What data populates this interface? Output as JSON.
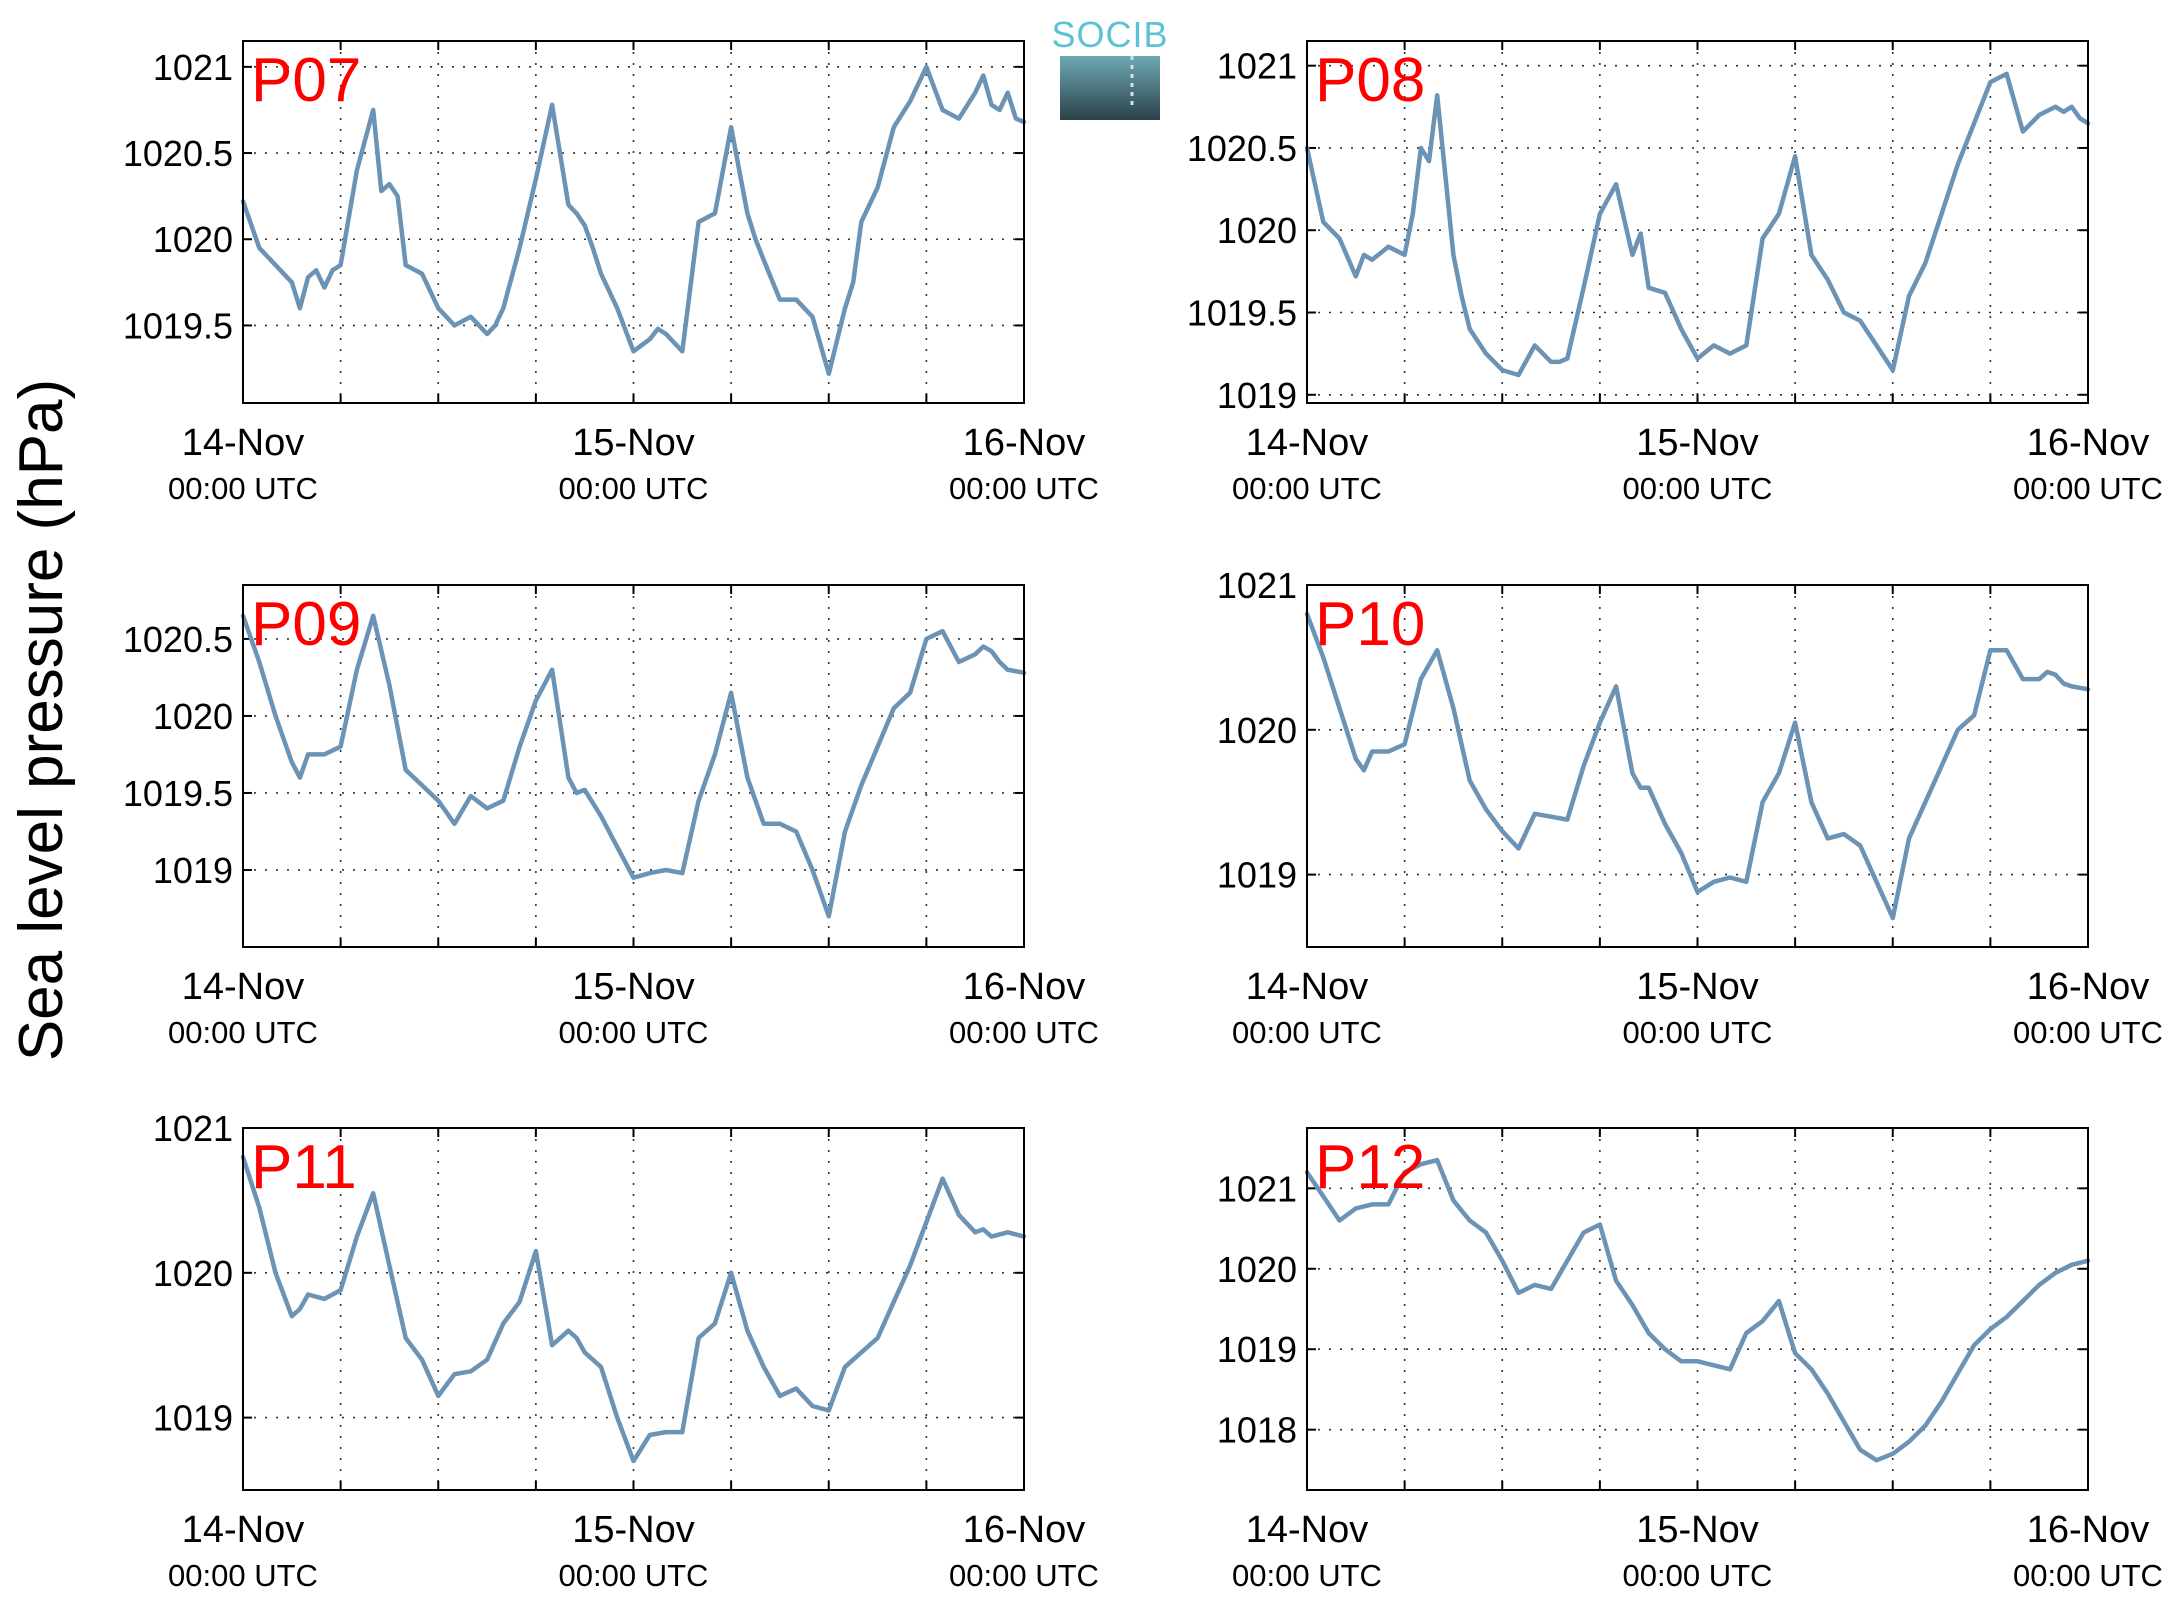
{
  "figure": {
    "ylabel": "Sea level pressure (hPa)",
    "logo_text": "SOCIB",
    "x_tick_labels": [
      {
        "main": "14-Nov",
        "sub": "00:00 UTC"
      },
      {
        "main": "15-Nov",
        "sub": "00:00 UTC"
      },
      {
        "main": "16-Nov",
        "sub": "00:00 UTC"
      }
    ],
    "line_color": "#6b93b5",
    "station_label_color": "#ff0000",
    "logo_color": "#5bc1d3"
  },
  "chart_data": [
    {
      "type": "line",
      "title": "P07",
      "x_unit": "hours since 14-Nov 00:00 UTC",
      "xlim": [
        0,
        48
      ],
      "ylim": [
        1019.05,
        1021.15
      ],
      "yticks": [
        1019.5,
        1020,
        1020.5,
        1021
      ],
      "ytick_labels": [
        "1019.5",
        "1020",
        "1020.5",
        "1021"
      ],
      "grid": true,
      "x": [
        0,
        1,
        2,
        3,
        3.5,
        4,
        4.5,
        5,
        5.5,
        6,
        7,
        8,
        8.5,
        9,
        9.5,
        10,
        11,
        12,
        13,
        14,
        15,
        15.5,
        16,
        17,
        18,
        19,
        20,
        20.5,
        21,
        21.5,
        22,
        23,
        24,
        25,
        25.5,
        26,
        27,
        28,
        29,
        30,
        31,
        31.5,
        32,
        33,
        34,
        35,
        36,
        37,
        37.5,
        38,
        39,
        40,
        41,
        42,
        43,
        44,
        45,
        45.5,
        46,
        46.5,
        47,
        47.5,
        48
      ],
      "y": [
        1020.22,
        1019.95,
        1019.85,
        1019.75,
        1019.6,
        1019.78,
        1019.82,
        1019.72,
        1019.82,
        1019.85,
        1020.4,
        1020.75,
        1020.28,
        1020.32,
        1020.25,
        1019.85,
        1019.8,
        1019.6,
        1019.5,
        1019.55,
        1019.45,
        1019.5,
        1019.6,
        1019.95,
        1020.35,
        1020.78,
        1020.2,
        1020.15,
        1020.08,
        1019.95,
        1019.8,
        1019.6,
        1019.35,
        1019.42,
        1019.48,
        1019.45,
        1019.35,
        1020.1,
        1020.15,
        1020.65,
        1020.15,
        1020.0,
        1019.88,
        1019.65,
        1019.65,
        1019.55,
        1019.22,
        1019.6,
        1019.75,
        1020.1,
        1020.3,
        1020.65,
        1020.8,
        1021.0,
        1020.75,
        1020.7,
        1020.85,
        1020.95,
        1020.78,
        1020.75,
        1020.85,
        1020.7,
        1020.68
      ]
    },
    {
      "type": "line",
      "title": "P08",
      "x_unit": "hours since 14-Nov 00:00 UTC",
      "xlim": [
        0,
        48
      ],
      "ylim": [
        1018.95,
        1021.15
      ],
      "yticks": [
        1019,
        1019.5,
        1020,
        1020.5,
        1021
      ],
      "ytick_labels": [
        "1019",
        "1019.5",
        "1020",
        "1020.5",
        "1021"
      ],
      "grid": true,
      "x": [
        0,
        1,
        2,
        3,
        3.5,
        4,
        5,
        6,
        6.5,
        7,
        7.5,
        8,
        9,
        9.5,
        10,
        11,
        12,
        13,
        14,
        15,
        15.5,
        16,
        17,
        18,
        19,
        20,
        20.5,
        21,
        22,
        23,
        24,
        25,
        26,
        27,
        28,
        29,
        30,
        31,
        32,
        33,
        34,
        35,
        36,
        37,
        38,
        39,
        40,
        41,
        42,
        43,
        44,
        45,
        46,
        46.5,
        47,
        47.5,
        48
      ],
      "y": [
        1020.5,
        1020.05,
        1019.95,
        1019.72,
        1019.85,
        1019.82,
        1019.9,
        1019.85,
        1020.1,
        1020.5,
        1020.42,
        1020.82,
        1019.85,
        1019.6,
        1019.4,
        1019.25,
        1019.15,
        1019.12,
        1019.3,
        1019.2,
        1019.2,
        1019.22,
        1019.65,
        1020.1,
        1020.28,
        1019.85,
        1019.98,
        1019.65,
        1019.62,
        1019.4,
        1019.22,
        1019.3,
        1019.25,
        1019.3,
        1019.95,
        1020.1,
        1020.45,
        1019.85,
        1019.7,
        1019.5,
        1019.45,
        1019.3,
        1019.15,
        1019.6,
        1019.8,
        1020.1,
        1020.4,
        1020.65,
        1020.9,
        1020.95,
        1020.6,
        1020.7,
        1020.75,
        1020.72,
        1020.75,
        1020.68,
        1020.65
      ]
    },
    {
      "type": "line",
      "title": "P09",
      "x_unit": "hours since 14-Nov 00:00 UTC",
      "xlim": [
        0,
        48
      ],
      "ylim": [
        1018.5,
        1020.85
      ],
      "yticks": [
        1019,
        1019.5,
        1020,
        1020.5
      ],
      "ytick_labels": [
        "1019",
        "1019.5",
        "1020",
        "1020.5"
      ],
      "grid": true,
      "x": [
        0,
        1,
        2,
        3,
        3.5,
        4,
        5,
        6,
        7,
        8,
        9,
        10,
        11,
        12,
        13,
        14,
        15,
        16,
        17,
        18,
        19,
        20,
        20.5,
        21,
        22,
        23,
        24,
        25,
        26,
        27,
        28,
        29,
        30,
        31,
        32,
        33,
        34,
        35,
        36,
        37,
        38,
        39,
        40,
        41,
        42,
        43,
        44,
        45,
        45.5,
        46,
        46.5,
        47,
        48
      ],
      "y": [
        1020.65,
        1020.35,
        1020.0,
        1019.7,
        1019.6,
        1019.75,
        1019.75,
        1019.8,
        1020.3,
        1020.65,
        1020.2,
        1019.65,
        1019.55,
        1019.45,
        1019.3,
        1019.48,
        1019.4,
        1019.45,
        1019.8,
        1020.1,
        1020.3,
        1019.6,
        1019.5,
        1019.52,
        1019.35,
        1019.15,
        1018.95,
        1018.98,
        1019.0,
        1018.98,
        1019.45,
        1019.75,
        1020.15,
        1019.6,
        1019.3,
        1019.3,
        1019.25,
        1019.0,
        1018.7,
        1019.25,
        1019.55,
        1019.8,
        1020.05,
        1020.15,
        1020.5,
        1020.55,
        1020.35,
        1020.4,
        1020.45,
        1020.42,
        1020.35,
        1020.3,
        1020.28
      ]
    },
    {
      "type": "line",
      "title": "P10",
      "x_unit": "hours since 14-Nov 00:00 UTC",
      "xlim": [
        0,
        48
      ],
      "ylim": [
        1018.5,
        1021.0
      ],
      "yticks": [
        1019,
        1020,
        1021
      ],
      "ytick_labels": [
        "1019",
        "1020",
        "1021"
      ],
      "grid": true,
      "x": [
        0,
        1,
        2,
        3,
        3.5,
        4,
        5,
        6,
        7,
        8,
        9,
        10,
        11,
        12,
        13,
        14,
        15,
        16,
        17,
        18,
        19,
        20,
        20.5,
        21,
        22,
        23,
        24,
        25,
        26,
        27,
        28,
        29,
        30,
        31,
        32,
        33,
        34,
        35,
        36,
        37,
        38,
        39,
        40,
        41,
        42,
        43,
        44,
        45,
        45.5,
        46,
        46.5,
        47,
        48
      ],
      "y": [
        1020.8,
        1020.5,
        1020.15,
        1019.8,
        1019.72,
        1019.85,
        1019.85,
        1019.9,
        1020.35,
        1020.55,
        1020.15,
        1019.65,
        1019.45,
        1019.3,
        1019.18,
        1019.42,
        1019.4,
        1019.38,
        1019.75,
        1020.05,
        1020.3,
        1019.7,
        1019.6,
        1019.6,
        1019.35,
        1019.15,
        1018.88,
        1018.95,
        1018.98,
        1018.95,
        1019.5,
        1019.7,
        1020.05,
        1019.5,
        1019.25,
        1019.28,
        1019.2,
        1018.95,
        1018.7,
        1019.25,
        1019.5,
        1019.75,
        1020.0,
        1020.1,
        1020.55,
        1020.55,
        1020.35,
        1020.35,
        1020.4,
        1020.38,
        1020.32,
        1020.3,
        1020.28
      ]
    },
    {
      "type": "line",
      "title": "P11",
      "x_unit": "hours since 14-Nov 00:00 UTC",
      "xlim": [
        0,
        48
      ],
      "ylim": [
        1018.5,
        1021.0
      ],
      "yticks": [
        1019,
        1020,
        1021
      ],
      "ytick_labels": [
        "1019",
        "1020",
        "1021"
      ],
      "grid": true,
      "x": [
        0,
        1,
        2,
        3,
        3.5,
        4,
        5,
        6,
        7,
        8,
        9,
        10,
        11,
        12,
        13,
        14,
        15,
        16,
        17,
        18,
        19,
        20,
        20.5,
        21,
        22,
        23,
        24,
        25,
        26,
        27,
        28,
        29,
        30,
        31,
        32,
        33,
        34,
        35,
        36,
        37,
        38,
        39,
        40,
        41,
        42,
        43,
        44,
        45,
        45.5,
        46,
        47,
        48
      ],
      "y": [
        1020.8,
        1020.45,
        1020.0,
        1019.7,
        1019.75,
        1019.85,
        1019.82,
        1019.88,
        1020.25,
        1020.55,
        1020.05,
        1019.55,
        1019.4,
        1019.15,
        1019.3,
        1019.32,
        1019.4,
        1019.65,
        1019.8,
        1020.15,
        1019.5,
        1019.6,
        1019.55,
        1019.45,
        1019.35,
        1019.0,
        1018.7,
        1018.88,
        1018.9,
        1018.9,
        1019.55,
        1019.65,
        1020.0,
        1019.6,
        1019.35,
        1019.15,
        1019.2,
        1019.08,
        1019.05,
        1019.35,
        1019.45,
        1019.55,
        1019.8,
        1020.05,
        1020.35,
        1020.65,
        1020.4,
        1020.28,
        1020.3,
        1020.25,
        1020.28,
        1020.25
      ]
    },
    {
      "type": "line",
      "title": "P12",
      "x_unit": "hours since 14-Nov 00:00 UTC",
      "xlim": [
        0,
        48
      ],
      "ylim": [
        1017.25,
        1021.75
      ],
      "yticks": [
        1018,
        1019,
        1020,
        1021
      ],
      "ytick_labels": [
        "1018",
        "1019",
        "1020",
        "1021"
      ],
      "grid": true,
      "x": [
        0,
        1,
        2,
        3,
        4,
        5,
        6,
        7,
        8,
        9,
        10,
        11,
        12,
        13,
        14,
        15,
        16,
        17,
        18,
        19,
        20,
        21,
        22,
        23,
        24,
        25,
        26,
        27,
        28,
        29,
        30,
        31,
        32,
        33,
        34,
        35,
        36,
        37,
        38,
        39,
        40,
        41,
        42,
        43,
        44,
        45,
        46,
        47,
        48
      ],
      "y": [
        1021.2,
        1020.9,
        1020.6,
        1020.75,
        1020.8,
        1020.8,
        1021.2,
        1021.3,
        1021.35,
        1020.85,
        1020.6,
        1020.45,
        1020.1,
        1019.7,
        1019.8,
        1019.75,
        1020.1,
        1020.45,
        1020.55,
        1019.85,
        1019.55,
        1019.2,
        1019.0,
        1018.85,
        1018.85,
        1018.8,
        1018.75,
        1019.2,
        1019.35,
        1019.6,
        1018.95,
        1018.75,
        1018.45,
        1018.1,
        1017.75,
        1017.62,
        1017.7,
        1017.85,
        1018.05,
        1018.35,
        1018.7,
        1019.05,
        1019.25,
        1019.4,
        1019.6,
        1019.8,
        1019.95,
        1020.05,
        1020.1
      ]
    }
  ]
}
